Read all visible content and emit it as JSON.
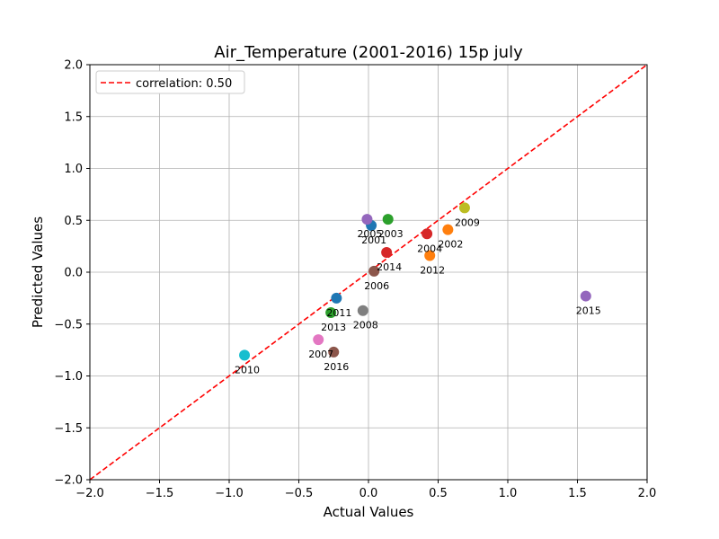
{
  "chart_data": {
    "type": "scatter",
    "title": "Air_Temperature (2001-2016) 15p july",
    "xlabel": "Actual Values",
    "ylabel": "Predicted Values",
    "xlim": [
      -2.0,
      2.0
    ],
    "ylim": [
      -2.0,
      2.0
    ],
    "xticks": [
      "−2.0",
      "−1.5",
      "−1.0",
      "−0.5",
      "0.0",
      "0.5",
      "1.0",
      "1.5",
      "2.0"
    ],
    "yticks": [
      "−2.0",
      "−1.5",
      "−1.0",
      "−0.5",
      "0.0",
      "0.5",
      "1.0",
      "1.5",
      "2.0"
    ],
    "xtick_values": [
      -2.0,
      -1.5,
      -1.0,
      -0.5,
      0.0,
      0.5,
      1.0,
      1.5,
      2.0
    ],
    "ytick_values": [
      -2.0,
      -1.5,
      -1.0,
      -0.5,
      0.0,
      0.5,
      1.0,
      1.5,
      2.0
    ],
    "grid": true,
    "legend": {
      "placement": "top-left",
      "label": "correlation: 0.50",
      "color": "#ff0000"
    },
    "reference_line": {
      "from": [
        -2.0,
        -2.0
      ],
      "to": [
        2.0,
        2.0
      ],
      "color": "#ff0000",
      "style": "dashed"
    },
    "points": [
      {
        "label": "2001",
        "x": 0.02,
        "y": 0.45,
        "color": "#1f77b4"
      },
      {
        "label": "2002",
        "x": 0.57,
        "y": 0.41,
        "color": "#ff7f0e"
      },
      {
        "label": "2003",
        "x": 0.14,
        "y": 0.51,
        "color": "#2ca02c"
      },
      {
        "label": "2004",
        "x": 0.42,
        "y": 0.37,
        "color": "#d62728"
      },
      {
        "label": "2005",
        "x": -0.01,
        "y": 0.51,
        "color": "#9467bd"
      },
      {
        "label": "2006",
        "x": 0.04,
        "y": 0.01,
        "color": "#8c564b"
      },
      {
        "label": "2007",
        "x": -0.36,
        "y": -0.65,
        "color": "#e377c2"
      },
      {
        "label": "2008",
        "x": -0.04,
        "y": -0.37,
        "color": "#7f7f7f"
      },
      {
        "label": "2009",
        "x": 0.69,
        "y": 0.62,
        "color": "#bcbd22"
      },
      {
        "label": "2010",
        "x": -0.89,
        "y": -0.8,
        "color": "#17becf"
      },
      {
        "label": "2011",
        "x": -0.23,
        "y": -0.25,
        "color": "#1f77b4"
      },
      {
        "label": "2012",
        "x": 0.44,
        "y": 0.16,
        "color": "#ff7f0e"
      },
      {
        "label": "2013",
        "x": -0.27,
        "y": -0.39,
        "color": "#2ca02c"
      },
      {
        "label": "2014",
        "x": 0.13,
        "y": 0.19,
        "color": "#d62728"
      },
      {
        "label": "2015",
        "x": 1.56,
        "y": -0.23,
        "color": "#9467bd"
      },
      {
        "label": "2016",
        "x": -0.25,
        "y": -0.77,
        "color": "#8c564b"
      }
    ]
  }
}
